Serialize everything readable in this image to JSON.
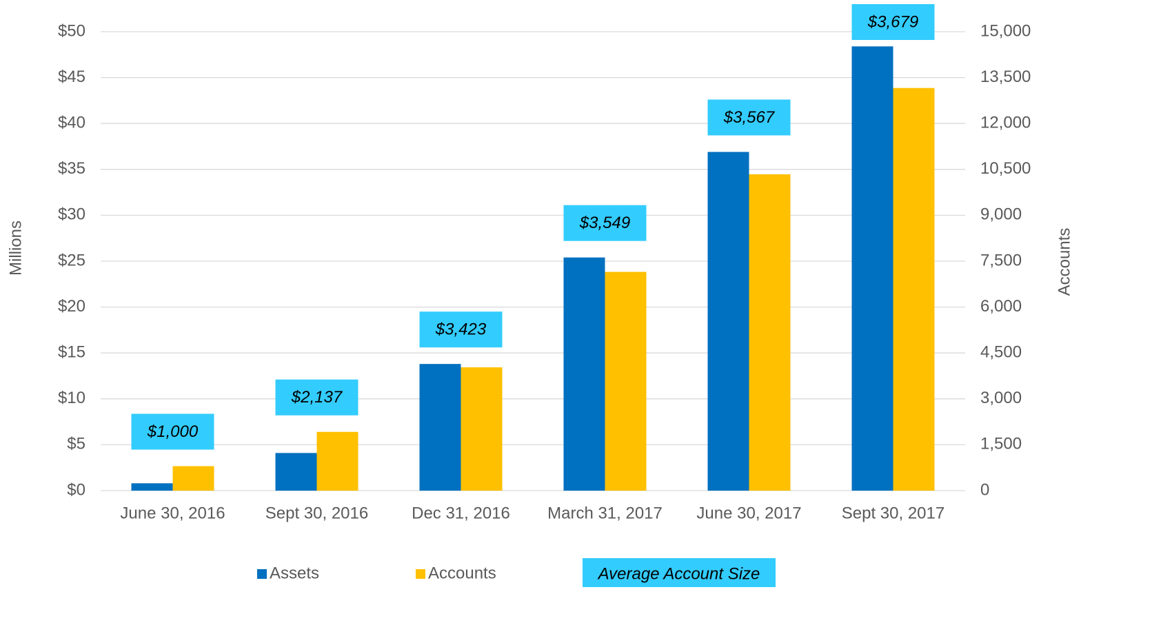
{
  "chart_data": {
    "type": "bar",
    "categories": [
      "June 30, 2016",
      "Sept 30, 2016",
      "Dec 31, 2016",
      "March 31, 2017",
      "June 30, 2017",
      "Sept 30, 2017"
    ],
    "series": [
      {
        "name": "Assets",
        "color": "#0070c0",
        "values": [
          0.8,
          4.1,
          13.8,
          25.4,
          36.9,
          48.4
        ]
      },
      {
        "name": "Accounts",
        "color": "#ffc000",
        "axis": "y2",
        "values": [
          800,
          1920,
          4030,
          7150,
          10340,
          13160
        ]
      },
      {
        "name": "Average Account Size",
        "color": "#33ccff",
        "type": "label",
        "values": [
          1000,
          2137,
          3423,
          3549,
          3567,
          3679
        ],
        "value_labels": [
          "$1,000",
          "$2,137",
          "$3,423",
          "$3,549",
          "$3,567",
          "$3,679"
        ]
      }
    ],
    "ylabel": "Millions",
    "y2label": "Accounts",
    "ylim": [
      0,
      50
    ],
    "yticks": [
      {
        "value": 0,
        "label": "$0"
      },
      {
        "value": 5,
        "label": "$5"
      },
      {
        "value": 10,
        "label": "$10"
      },
      {
        "value": 15,
        "label": "$15"
      },
      {
        "value": 20,
        "label": "$20"
      },
      {
        "value": 25,
        "label": "$25"
      },
      {
        "value": 30,
        "label": "$30"
      },
      {
        "value": 35,
        "label": "$35"
      },
      {
        "value": 40,
        "label": "$40"
      },
      {
        "value": 45,
        "label": "$45"
      },
      {
        "value": 50,
        "label": "$50"
      }
    ],
    "y2lim": [
      0,
      15000
    ],
    "y2ticks": [
      0,
      {
        "value": 1500,
        "label": "1,500"
      },
      {
        "value": 3000,
        "label": "3,000"
      },
      {
        "value": 4500,
        "label": "4,500"
      },
      {
        "value": 6000,
        "label": "6,000"
      },
      {
        "value": 7500,
        "label": "7,500"
      },
      {
        "value": 9000,
        "label": "9,000"
      },
      {
        "value": 10500,
        "label": "10,500"
      },
      {
        "value": 12000,
        "label": "12,000"
      },
      {
        "value": 13500,
        "label": "13,500"
      },
      {
        "value": 15000,
        "label": "15,000"
      }
    ],
    "grid": true,
    "legend": "bottom"
  }
}
